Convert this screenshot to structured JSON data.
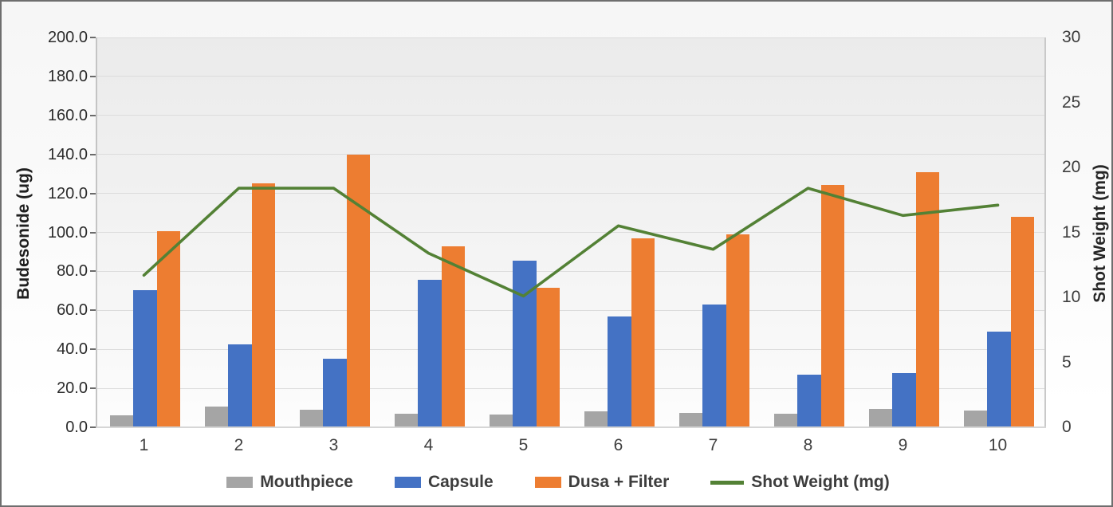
{
  "chart_data": {
    "type": "combo",
    "categories": [
      "1",
      "2",
      "3",
      "4",
      "5",
      "6",
      "7",
      "8",
      "9",
      "10"
    ],
    "series": [
      {
        "name": "Mouthpiece",
        "type": "bar",
        "axis": "left",
        "color": "#A5A5A5",
        "values": [
          6,
          10.5,
          9,
          7,
          6.5,
          8,
          7.5,
          7,
          9.5,
          8.5
        ]
      },
      {
        "name": "Capsule",
        "type": "bar",
        "axis": "left",
        "color": "#4472C4",
        "values": [
          70.5,
          42.5,
          35,
          75.5,
          85.5,
          57,
          63,
          27,
          28,
          49
        ]
      },
      {
        "name": "Dusa + Filter",
        "type": "bar",
        "axis": "left",
        "color": "#ED7D31",
        "values": [
          100.5,
          125,
          140,
          93,
          71.5,
          97,
          99,
          124.5,
          131,
          108
        ]
      },
      {
        "name": "Shot Weight (mg)",
        "type": "line",
        "axis": "right",
        "color": "#538135",
        "values": [
          11.7,
          18.4,
          18.4,
          13.4,
          10.1,
          15.5,
          13.7,
          18.4,
          16.3,
          17.1
        ]
      }
    ],
    "left_axis": {
      "title": "Budesonide (ug)",
      "min": 0,
      "max": 200,
      "step": 20,
      "tick_labels": [
        "200.0",
        "180.0",
        "160.0",
        "140.0",
        "120.0",
        "100.0",
        "80.0",
        "60.0",
        "40.0",
        "20.0",
        "0.0"
      ]
    },
    "right_axis": {
      "title": "Shot Weight (mg)",
      "min": 0,
      "max": 30,
      "step": 5,
      "tick_labels": [
        "30",
        "25",
        "20",
        "15",
        "10",
        "5",
        "0"
      ]
    },
    "legend_position": "bottom",
    "grid": true
  }
}
